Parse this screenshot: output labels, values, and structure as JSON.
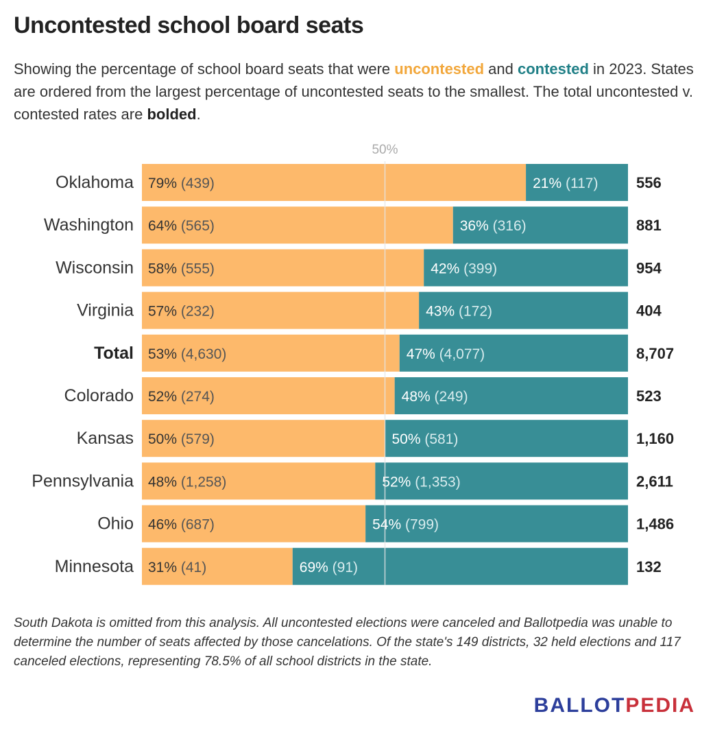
{
  "title": "Uncontested school board seats",
  "subtitle": {
    "part1": "Showing the percentage of school board seats that were ",
    "uncontested": "uncontested",
    "part2": " and ",
    "contested": "contested",
    "part3": " in 2023. States are ordered from the largest percentage of uncontested seats to the smallest. The total uncontested v. contested rates are ",
    "bolded": "bolded",
    "part4": "."
  },
  "footnote": "South Dakota is omitted from this analysis. All uncontested elections were canceled and Ballotpedia was unable to determine the number of seats affected by those cancelations. Of the state's 149 districts, 32 held elections and 117 canceled elections, representing 78.5% of all school districts in the state.",
  "logo": {
    "part1": "BALLOT",
    "part2": "PEDIA"
  },
  "colors": {
    "uncontested": "#fdb96b",
    "contested": "#388e96",
    "reference_line": "#e6e6e6",
    "reference_label": "#aaaaaa",
    "uncontested_text": "#333333",
    "contested_text": "#ffffff",
    "count_text": "#555555",
    "contested_count_text": "#d8ecee"
  },
  "chart_data": {
    "type": "bar",
    "stacked": true,
    "orientation": "horizontal",
    "normalized_to_percent": true,
    "reference_line": {
      "value": 50,
      "label": "50%"
    },
    "categories": [
      "Oklahoma",
      "Washington",
      "Wisconsin",
      "Virginia",
      "Total",
      "Colorado",
      "Kansas",
      "Pennsylvania",
      "Ohio",
      "Minnesota"
    ],
    "bold_categories": [
      "Total"
    ],
    "series": [
      {
        "key": "uncontested",
        "percent": [
          79,
          64,
          58,
          57,
          53,
          52,
          50,
          48,
          46,
          31
        ],
        "percent_labels": [
          "79%",
          "64%",
          "58%",
          "57%",
          "53%",
          "52%",
          "50%",
          "48%",
          "46%",
          "31%"
        ],
        "count_labels": [
          "(439)",
          "(565)",
          "(555)",
          "(232)",
          "(4,630)",
          "(274)",
          "(579)",
          "(1,258)",
          "(687)",
          "(41)"
        ]
      },
      {
        "key": "contested",
        "percent": [
          21,
          36,
          42,
          43,
          47,
          48,
          50,
          52,
          54,
          69
        ],
        "percent_labels": [
          "21%",
          "36%",
          "42%",
          "43%",
          "47%",
          "48%",
          "50%",
          "52%",
          "54%",
          "69%"
        ],
        "count_labels": [
          "(117)",
          "(316)",
          "(399)",
          "(172)",
          "(4,077)",
          "(249)",
          "(581)",
          "(1,353)",
          "(799)",
          "(91)"
        ]
      }
    ],
    "totals": [
      "556",
      "881",
      "954",
      "404",
      "8,707",
      "523",
      "1,160",
      "2,611",
      "1,486",
      "132"
    ],
    "xlim": [
      0,
      100
    ]
  }
}
